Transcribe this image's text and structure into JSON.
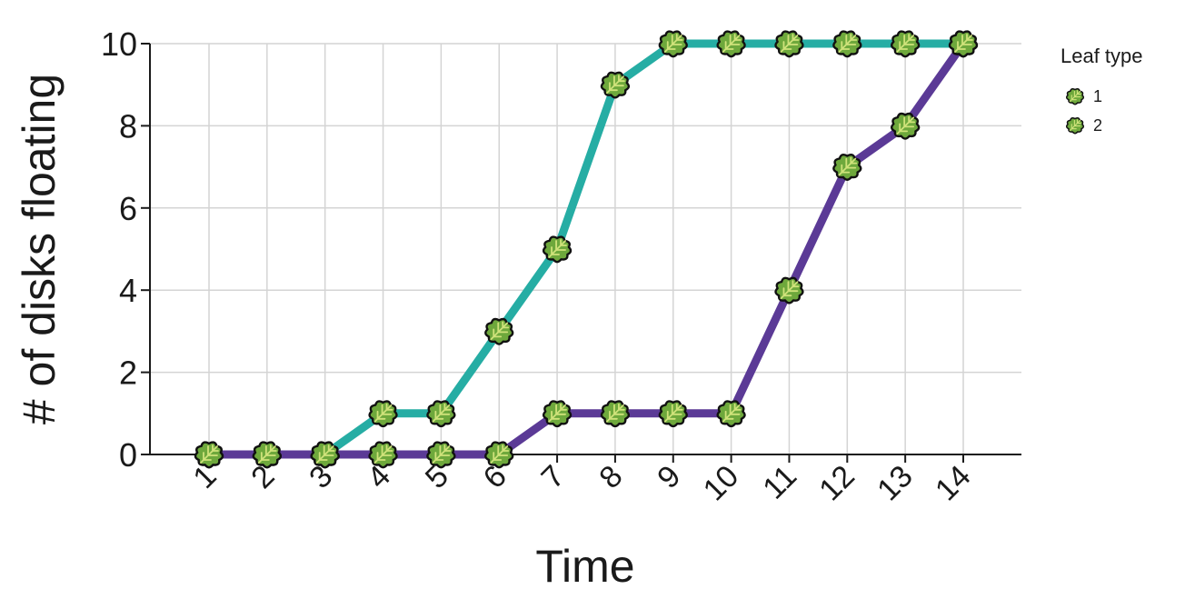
{
  "chart_data": {
    "type": "line",
    "title": "",
    "xlabel": "Time",
    "ylabel": "# of disks floating",
    "x": [
      1,
      2,
      3,
      4,
      5,
      6,
      7,
      8,
      9,
      10,
      11,
      12,
      13,
      14
    ],
    "x_tick_labels": [
      "1",
      "2",
      "3",
      "4",
      "5",
      "6",
      "7",
      "8",
      "9",
      "10",
      "11",
      "12",
      "13",
      "14"
    ],
    "ylim": [
      0,
      10
    ],
    "y_ticks": [
      0,
      2,
      4,
      6,
      8,
      10
    ],
    "y_tick_labels": [
      "0",
      "2",
      "4",
      "6",
      "8",
      "10"
    ],
    "grid": true,
    "legend": {
      "title": "Leaf type",
      "position": "right",
      "marker": "leaf-icon"
    },
    "series": [
      {
        "name": "1",
        "color": "#26ada4",
        "values": [
          0,
          0,
          0,
          1,
          1,
          3,
          5,
          9,
          10,
          10,
          10,
          10,
          10,
          10
        ]
      },
      {
        "name": "2",
        "color": "#5b3a96",
        "values": [
          0,
          0,
          0,
          0,
          0,
          0,
          1,
          1,
          1,
          1,
          4,
          7,
          8,
          10
        ]
      }
    ],
    "marker_colors": {
      "fill": "#6ea83c",
      "outline": "#111111",
      "vein": "#cfe27a"
    }
  }
}
